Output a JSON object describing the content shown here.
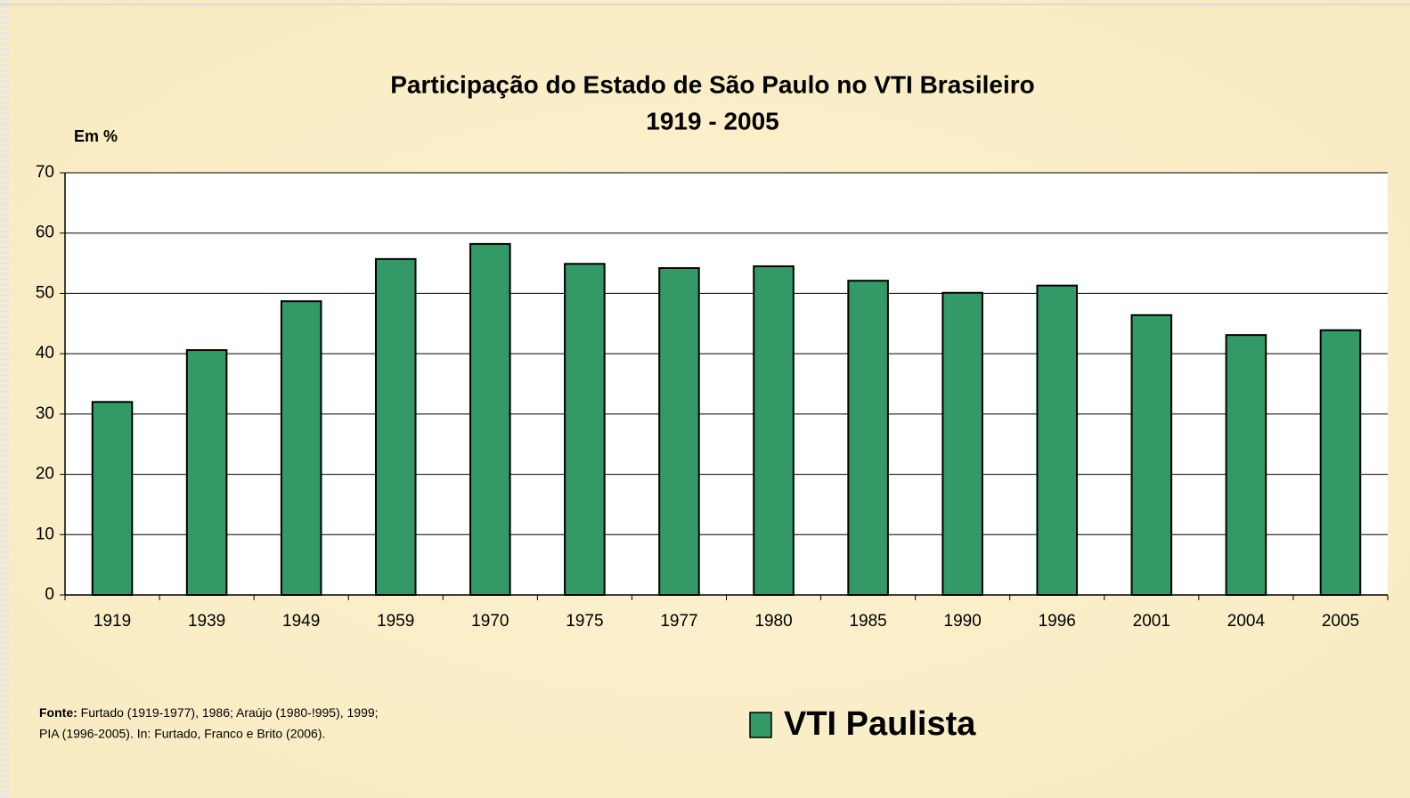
{
  "chart_data": {
    "type": "bar",
    "title": "Participação do Estado de São Paulo no VTI Brasileiro",
    "subtitle": "1919 - 2005",
    "y_label": "Em %",
    "categories": [
      "1919",
      "1939",
      "1949",
      "1959",
      "1970",
      "1975",
      "1977",
      "1980",
      "1985",
      "1990",
      "1996",
      "2001",
      "2004",
      "2005"
    ],
    "series": [
      {
        "name": "VTI Paulista",
        "color": "#339966",
        "values": [
          32.0,
          40.6,
          48.7,
          55.7,
          58.2,
          54.9,
          54.2,
          54.5,
          52.1,
          50.1,
          51.3,
          46.4,
          43.1,
          43.9
        ]
      }
    ],
    "ylim": [
      0,
      70
    ],
    "yticks": [
      0,
      10,
      20,
      30,
      40,
      50,
      60,
      70
    ],
    "grid": true,
    "source_label": "Fonte:",
    "source_lines": [
      "Furtado (1919-1977), 1986; Araújo (1980-!995), 1999;",
      "PIA (1996-2005). In: Furtado, Franco e Brito (2006)."
    ]
  }
}
